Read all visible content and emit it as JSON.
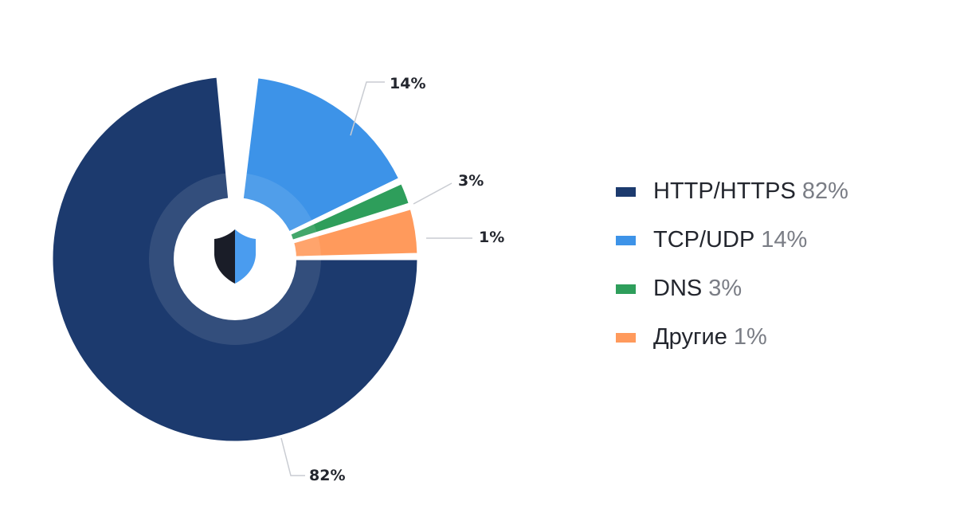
{
  "chart_data": {
    "type": "pie",
    "style": "donut-with-center-icon",
    "title": "",
    "categories": [
      "HTTP/HTTPS",
      "TCP/UDP",
      "DNS",
      "Другие"
    ],
    "values": [
      82,
      14,
      3,
      1
    ],
    "value_labels": [
      "82%",
      "14%",
      "3%",
      "1%"
    ],
    "colors": [
      "#1c3a6e",
      "#3d93e8",
      "#2e9e5b",
      "#ff9a5c"
    ],
    "legend_position": "right",
    "center_icon": "shield-icon"
  },
  "legend": {
    "items": [
      {
        "name": "HTTP/HTTPS",
        "value": "82%",
        "color": "#1c3a6e"
      },
      {
        "name": "TCP/UDP",
        "value": "14%",
        "color": "#3d93e8"
      },
      {
        "name": "DNS",
        "value": "3%",
        "color": "#2e9e5b"
      },
      {
        "name": "Другие",
        "value": "1%",
        "color": "#ff9a5c"
      }
    ]
  },
  "labels": {
    "http": "82%",
    "tcp": "14%",
    "dns": "3%",
    "other": "1%"
  }
}
